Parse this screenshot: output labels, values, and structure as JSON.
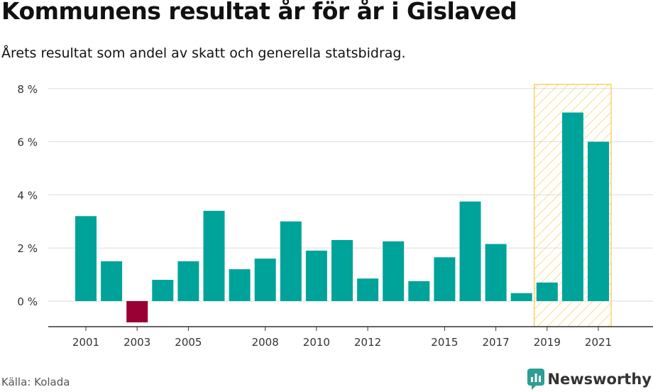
{
  "header": {
    "title": "Kommunens resultat år för år i Gislaved",
    "subtitle": "Årets resultat som andel av skatt och generella statsbidrag."
  },
  "footer": {
    "source": "Källa: Kolada",
    "brand": "Newsworthy"
  },
  "colors": {
    "positive": "#00A39A",
    "negative": "#990033",
    "highlight": "#F5C842",
    "grid": "#DDDDDD",
    "brand_icon": "#2E9E93"
  },
  "chart_data": {
    "type": "bar",
    "x": [
      2001,
      2002,
      2003,
      2004,
      2005,
      2006,
      2007,
      2008,
      2009,
      2010,
      2011,
      2012,
      2013,
      2014,
      2015,
      2016,
      2017,
      2018,
      2019,
      2020,
      2021
    ],
    "values": [
      3.2,
      1.5,
      -0.8,
      0.8,
      1.5,
      3.4,
      1.2,
      1.6,
      3.0,
      1.9,
      2.3,
      0.85,
      2.25,
      0.75,
      1.65,
      3.75,
      2.15,
      0.3,
      0.7,
      7.1,
      6.0
    ],
    "x_tick_labels": [
      "2001",
      "2003",
      "2005",
      "2008",
      "2010",
      "2012",
      "2015",
      "2017",
      "2019",
      "2021"
    ],
    "y_ticks": [
      0,
      2,
      4,
      6,
      8
    ],
    "y_tick_labels": [
      "0 %",
      "2 %",
      "4 %",
      "6 %",
      "8 %"
    ],
    "ylim": [
      -1,
      8
    ],
    "highlight_range": [
      2019,
      2021
    ],
    "grid": true
  }
}
